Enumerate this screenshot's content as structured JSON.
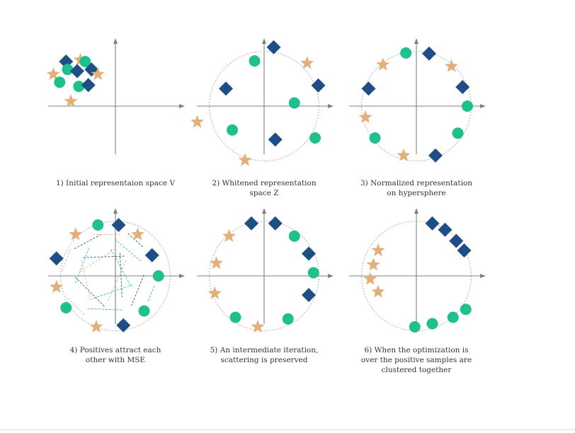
{
  "colors": {
    "diamond": "#1f4e87",
    "circle": "#1fc08e",
    "star": "#e3b07c",
    "axis": "#808080",
    "guide_circle": "#b0b0b0"
  },
  "legend_icons": [
    "diamond-marker",
    "circle-marker",
    "star-marker"
  ],
  "panels": [
    {
      "caption": [
        "1) Initial representaion space V"
      ],
      "has_circle": false,
      "arrows": false,
      "points": [
        {
          "shape": "diamond",
          "x": -1.55,
          "y": 1.4
        },
        {
          "shape": "star",
          "x": -1.1,
          "y": 1.45
        },
        {
          "shape": "circle",
          "x": -0.95,
          "y": 1.4
        },
        {
          "shape": "circle",
          "x": -1.5,
          "y": 1.15
        },
        {
          "shape": "diamond",
          "x": -1.2,
          "y": 1.1
        },
        {
          "shape": "diamond",
          "x": -0.75,
          "y": 1.15
        },
        {
          "shape": "star",
          "x": -1.95,
          "y": 1.0
        },
        {
          "shape": "star",
          "x": -0.55,
          "y": 1.0
        },
        {
          "shape": "circle",
          "x": -1.75,
          "y": 0.75
        },
        {
          "shape": "circle",
          "x": -1.15,
          "y": 0.62
        },
        {
          "shape": "diamond",
          "x": -0.85,
          "y": 0.66
        },
        {
          "shape": "star",
          "x": -1.4,
          "y": 0.15
        }
      ]
    },
    {
      "caption": [
        "2) Whitened representation",
        "space Z"
      ],
      "has_circle": true,
      "arrows": false,
      "points": [
        {
          "shape": "diamond",
          "x": 0.3,
          "y": 1.85
        },
        {
          "shape": "circle",
          "x": -0.3,
          "y": 1.42
        },
        {
          "shape": "star",
          "x": 1.35,
          "y": 1.35
        },
        {
          "shape": "diamond",
          "x": 1.7,
          "y": 0.65
        },
        {
          "shape": "diamond",
          "x": -1.2,
          "y": 0.55
        },
        {
          "shape": "circle",
          "x": 0.95,
          "y": 0.1
        },
        {
          "shape": "star",
          "x": -2.1,
          "y": -0.5
        },
        {
          "shape": "circle",
          "x": -1.0,
          "y": -0.75
        },
        {
          "shape": "circle",
          "x": 1.6,
          "y": -1.0
        },
        {
          "shape": "diamond",
          "x": 0.35,
          "y": -1.05
        },
        {
          "shape": "star",
          "x": -0.6,
          "y": -1.7
        }
      ]
    },
    {
      "caption": [
        "3) Normalized representation",
        "on hypersphere"
      ],
      "has_circle": true,
      "arrows": false,
      "points": [
        {
          "shape": "circle",
          "x": -0.33,
          "y": 1.67
        },
        {
          "shape": "diamond",
          "x": 0.4,
          "y": 1.65
        },
        {
          "shape": "star",
          "x": -1.05,
          "y": 1.3
        },
        {
          "shape": "star",
          "x": 1.1,
          "y": 1.25
        },
        {
          "shape": "diamond",
          "x": -1.5,
          "y": 0.55
        },
        {
          "shape": "diamond",
          "x": 1.45,
          "y": 0.6
        },
        {
          "shape": "star",
          "x": -1.6,
          "y": -0.35
        },
        {
          "shape": "circle",
          "x": 1.6,
          "y": 0.0
        },
        {
          "shape": "circle",
          "x": -1.3,
          "y": -1.0
        },
        {
          "shape": "circle",
          "x": 1.3,
          "y": -0.85
        },
        {
          "shape": "star",
          "x": -0.4,
          "y": -1.55
        },
        {
          "shape": "diamond",
          "x": 0.6,
          "y": -1.55
        }
      ]
    },
    {
      "caption": [
        "4) Positives attract each",
        "other with MSE"
      ],
      "has_circle": true,
      "arrows": true,
      "points": [
        {
          "shape": "circle",
          "x": -0.55,
          "y": 1.6
        },
        {
          "shape": "diamond",
          "x": 0.1,
          "y": 1.6
        },
        {
          "shape": "star",
          "x": -1.25,
          "y": 1.3
        },
        {
          "shape": "star",
          "x": 0.7,
          "y": 1.3
        },
        {
          "shape": "diamond",
          "x": -1.85,
          "y": 0.55
        },
        {
          "shape": "diamond",
          "x": 1.15,
          "y": 0.65
        },
        {
          "shape": "circle",
          "x": 1.35,
          "y": 0.0
        },
        {
          "shape": "star",
          "x": -1.85,
          "y": -0.35
        },
        {
          "shape": "circle",
          "x": -1.55,
          "y": -1.0
        },
        {
          "shape": "circle",
          "x": 0.9,
          "y": -1.1
        },
        {
          "shape": "star",
          "x": -0.6,
          "y": -1.6
        },
        {
          "shape": "diamond",
          "x": 0.25,
          "y": -1.55
        }
      ]
    },
    {
      "caption": [
        "5) An intermediate iteration,",
        "scattering is preserved"
      ],
      "has_circle": true,
      "arrows": false,
      "points": [
        {
          "shape": "diamond",
          "x": -0.4,
          "y": 1.65
        },
        {
          "shape": "diamond",
          "x": 0.35,
          "y": 1.65
        },
        {
          "shape": "star",
          "x": -1.1,
          "y": 1.25
        },
        {
          "shape": "circle",
          "x": 0.95,
          "y": 1.25
        },
        {
          "shape": "star",
          "x": -1.5,
          "y": 0.4
        },
        {
          "shape": "diamond",
          "x": 1.4,
          "y": 0.7
        },
        {
          "shape": "circle",
          "x": 1.55,
          "y": 0.1
        },
        {
          "shape": "star",
          "x": -1.55,
          "y": -0.55
        },
        {
          "shape": "diamond",
          "x": 1.4,
          "y": -0.6
        },
        {
          "shape": "circle",
          "x": -0.9,
          "y": -1.3
        },
        {
          "shape": "circle",
          "x": 0.75,
          "y": -1.35
        },
        {
          "shape": "star",
          "x": -0.2,
          "y": -1.6
        }
      ]
    },
    {
      "caption": [
        "6) When the optimization is",
        "over the positive samples are",
        "clustered together"
      ],
      "has_circle": true,
      "arrows": false,
      "points": [
        {
          "shape": "diamond",
          "x": 0.5,
          "y": 1.65
        },
        {
          "shape": "diamond",
          "x": 0.9,
          "y": 1.45
        },
        {
          "shape": "diamond",
          "x": 1.25,
          "y": 1.1
        },
        {
          "shape": "diamond",
          "x": 1.5,
          "y": 0.8
        },
        {
          "shape": "star",
          "x": -1.2,
          "y": 0.8
        },
        {
          "shape": "star",
          "x": -1.35,
          "y": 0.35
        },
        {
          "shape": "star",
          "x": -1.45,
          "y": -0.1
        },
        {
          "shape": "star",
          "x": -1.2,
          "y": -0.5
        },
        {
          "shape": "circle",
          "x": 1.55,
          "y": -1.05
        },
        {
          "shape": "circle",
          "x": 1.15,
          "y": -1.3
        },
        {
          "shape": "circle",
          "x": 0.5,
          "y": -1.5
        },
        {
          "shape": "circle",
          "x": -0.05,
          "y": -1.6
        }
      ]
    }
  ]
}
